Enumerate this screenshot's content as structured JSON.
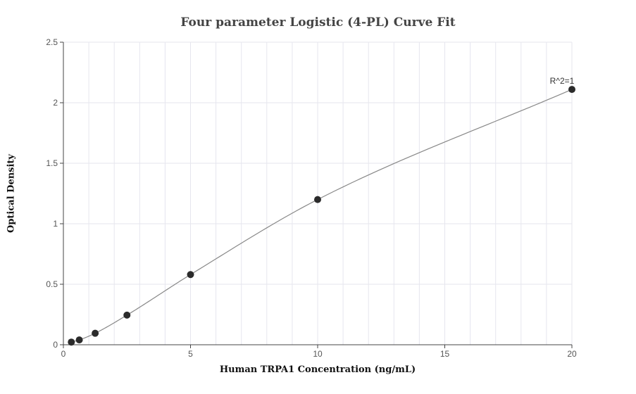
{
  "chart_data": {
    "type": "scatter",
    "title": "Four parameter Logistic (4-PL) Curve Fit",
    "xlabel": "Human TRPA1 Concentration (ng/mL)",
    "ylabel": "Optical Density",
    "xlim": [
      0,
      20
    ],
    "ylim": [
      0,
      2.5
    ],
    "x_ticks": [
      0,
      5,
      10,
      15,
      20
    ],
    "x_tick_labels": [
      "0",
      "5",
      "10",
      "15",
      "20"
    ],
    "y_ticks": [
      0,
      0.5,
      1,
      1.5,
      2,
      2.5
    ],
    "y_tick_labels": [
      "0",
      "0.5",
      "1",
      "1.5",
      "2",
      "2.5"
    ],
    "grid": true,
    "series": [
      {
        "x": [
          0.3125,
          0.625,
          1.25,
          2.5,
          5,
          10,
          20
        ],
        "y": [
          0.022,
          0.04,
          0.095,
          0.245,
          0.58,
          1.2,
          2.11
        ]
      }
    ],
    "annotations": [
      {
        "text": "R^2=1",
        "x": 20,
        "y": 2.11
      }
    ],
    "colors": {
      "marker": "#2b2b2b",
      "curve": "#888888",
      "grid": "#e6e6ee",
      "axis": "#444444",
      "tick_label": "#555555"
    }
  }
}
